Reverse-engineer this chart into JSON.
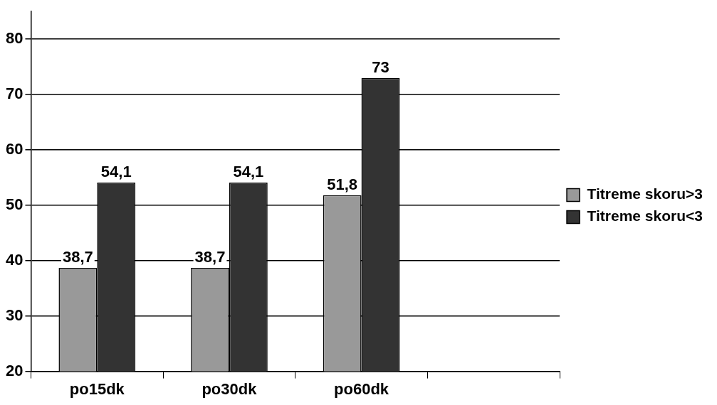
{
  "chart_data": {
    "type": "bar",
    "categories": [
      "po15dk",
      "po30dk",
      "po60dk",
      null
    ],
    "series": [
      {
        "name": "Titreme skoru>3",
        "color": "#999999",
        "values": [
          38.7,
          38.7,
          51.8,
          null
        ],
        "value_labels": [
          "38,7",
          "38,7",
          "51,8",
          null
        ]
      },
      {
        "name": "Titreme skoru<3",
        "color": "#333333",
        "values": [
          54.1,
          54.1,
          73,
          null
        ],
        "value_labels": [
          "54,1",
          "54,1",
          "73",
          null
        ]
      }
    ],
    "ylim": [
      20,
      85
    ],
    "yticks": [
      20,
      30,
      40,
      50,
      60,
      70,
      80
    ],
    "grid": "y",
    "legend": "right"
  }
}
